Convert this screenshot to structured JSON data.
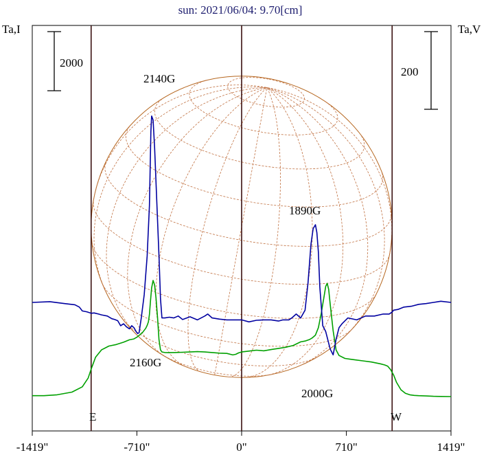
{
  "chart_data": {
    "type": "line",
    "title": "sun: 2021/06/04: 9.70[cm]",
    "left_axis_label": "Ta,I",
    "right_axis_label": "Ta,V",
    "left_scale_bar_label": "2000",
    "right_scale_bar_label": "200",
    "xlabel": "",
    "x_unit": "arcsec",
    "xlim": [
      -1419,
      1419
    ],
    "x_ticks": [
      -1419,
      -710,
      0,
      710,
      1419
    ],
    "x_tick_labels": [
      "-1419\"",
      "-710\"",
      "0\"",
      "710\"",
      "1419\""
    ],
    "limb_markers": [
      {
        "label": "E",
        "x": -1020
      },
      {
        "label": "W",
        "x": 1020
      }
    ],
    "solar_radius_arcsec": 1020,
    "series": [
      {
        "name": "Ta,I",
        "color": "#00a000",
        "x": [
          -1419,
          -1340,
          -1250,
          -1150,
          -1080,
          -1040,
          -1020,
          -990,
          -950,
          -900,
          -850,
          -800,
          -760,
          -730,
          -710,
          -690,
          -670,
          -650,
          -640,
          -632,
          -625,
          -618,
          -610,
          -600,
          -590,
          -580,
          -570,
          -560,
          -550,
          -540,
          -520,
          -500,
          -450,
          -400,
          -350,
          -300,
          -250,
          -200,
          -150,
          -100,
          -60,
          -40,
          -20,
          0,
          20,
          50,
          100,
          150,
          200,
          250,
          300,
          350,
          400,
          430,
          460,
          480,
          500,
          520,
          540,
          560,
          570,
          580,
          590,
          600,
          620,
          640,
          660,
          700,
          760,
          820,
          880,
          940,
          970,
          990,
          1010,
          1030,
          1050,
          1080,
          1110,
          1140,
          1170,
          1200,
          1250,
          1300,
          1350,
          1419
        ],
        "y": [
          -500,
          -500,
          -470,
          -380,
          -200,
          100,
          400,
          800,
          1050,
          1180,
          1230,
          1310,
          1390,
          1420,
          1480,
          1560,
          1650,
          1780,
          1880,
          2000,
          2250,
          2700,
          3150,
          3400,
          3250,
          2800,
          2150,
          1400,
          1050,
          980,
          960,
          955,
          960,
          970,
          980,
          990,
          980,
          960,
          940,
          930,
          880,
          900,
          950,
          980,
          990,
          1010,
          1040,
          1020,
          1060,
          1100,
          1140,
          1200,
          1320,
          1350,
          1400,
          1460,
          1550,
          1800,
          2300,
          2900,
          3200,
          3300,
          3100,
          2600,
          1700,
          1050,
          860,
          760,
          720,
          680,
          640,
          580,
          540,
          500,
          380,
          200,
          -50,
          -300,
          -420,
          -470,
          -490,
          -500,
          -510,
          -520,
          -525,
          -530
        ]
      },
      {
        "name": "Ta,V",
        "color": "#0000a0",
        "x": [
          -1419,
          -1300,
          -1200,
          -1130,
          -1100,
          -1080,
          -1050,
          -1020,
          -1000,
          -970,
          -950,
          -910,
          -880,
          -860,
          -840,
          -820,
          -800,
          -780,
          -760,
          -745,
          -730,
          -715,
          -705,
          -695,
          -680,
          -660,
          -640,
          -625,
          -615,
          -610,
          -600,
          -590,
          -575,
          -560,
          -550,
          -540,
          -520,
          -490,
          -460,
          -430,
          -400,
          -350,
          -300,
          -250,
          -230,
          -200,
          -150,
          -100,
          -50,
          0,
          50,
          100,
          150,
          200,
          250,
          280,
          320,
          340,
          370,
          400,
          430,
          450,
          470,
          485,
          500,
          510,
          520,
          530,
          550,
          570,
          600,
          620,
          640,
          660,
          680,
          720,
          780,
          840,
          900,
          960,
          1000,
          1020,
          1030,
          1060,
          1100,
          1150,
          1200,
          1250,
          1300,
          1350,
          1419
        ],
        "y": [
          0,
          2,
          -3,
          -6,
          -12,
          -22,
          -24,
          -28,
          -27,
          -30,
          -32,
          -35,
          -42,
          -44,
          -47,
          -60,
          -55,
          -63,
          -68,
          -60,
          -65,
          -75,
          -80,
          -78,
          -40,
          20,
          120,
          250,
          440,
          480,
          470,
          400,
          260,
          120,
          10,
          -40,
          -40,
          -38,
          -40,
          -35,
          -44,
          -37,
          -45,
          -35,
          -30,
          -40,
          -43,
          -45,
          -45,
          -45,
          -50,
          -46,
          -45,
          -45,
          -48,
          -45,
          -45,
          -40,
          -30,
          -40,
          -20,
          50,
          150,
          190,
          200,
          180,
          130,
          40,
          -60,
          -75,
          -120,
          -135,
          -95,
          -65,
          -55,
          -40,
          -45,
          -35,
          -35,
          -30,
          -30,
          -25,
          -20,
          -18,
          -12,
          -10,
          -5,
          -3,
          0,
          3,
          0
        ]
      }
    ],
    "annotations": [
      {
        "text": "2140G"
      },
      {
        "text": "2160G"
      },
      {
        "text": "1890G"
      },
      {
        "text": "2000G"
      }
    ],
    "grid": false
  }
}
